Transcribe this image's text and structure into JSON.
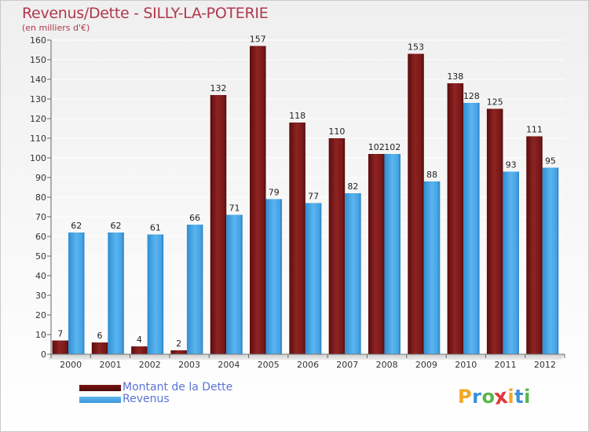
{
  "title": "Revenus/Dette - SILLY-LA-POTERIE",
  "subtitle": "(en milliers d'€)",
  "logo": {
    "letters": [
      "P",
      "r",
      "o",
      "x",
      "i",
      "t",
      "i"
    ],
    "colors": [
      "#f5a623",
      "#3b8fd8",
      "#58b848",
      "#e0383a",
      "#f5a623",
      "#3b8fd8",
      "#58b848"
    ]
  },
  "chart_data": {
    "type": "bar",
    "categories": [
      "2000",
      "2001",
      "2002",
      "2003",
      "2004",
      "2005",
      "2006",
      "2007",
      "2008",
      "2009",
      "2010",
      "2011",
      "2012"
    ],
    "series": [
      {
        "name": "Montant de la Dette",
        "color": "#8b1a1a",
        "values": [
          7,
          6,
          4,
          2,
          132,
          157,
          118,
          110,
          102,
          153,
          138,
          125,
          111
        ]
      },
      {
        "name": "Revenus",
        "color": "#4aa6e6",
        "values": [
          62,
          62,
          61,
          66,
          71,
          79,
          77,
          82,
          102,
          88,
          128,
          93,
          95
        ]
      }
    ],
    "ylim": [
      0,
      160
    ],
    "yticks": [
      0,
      10,
      20,
      30,
      40,
      50,
      60,
      70,
      80,
      90,
      100,
      110,
      120,
      130,
      140,
      150,
      160
    ],
    "grid": true,
    "legend_position": "bottom-left"
  }
}
